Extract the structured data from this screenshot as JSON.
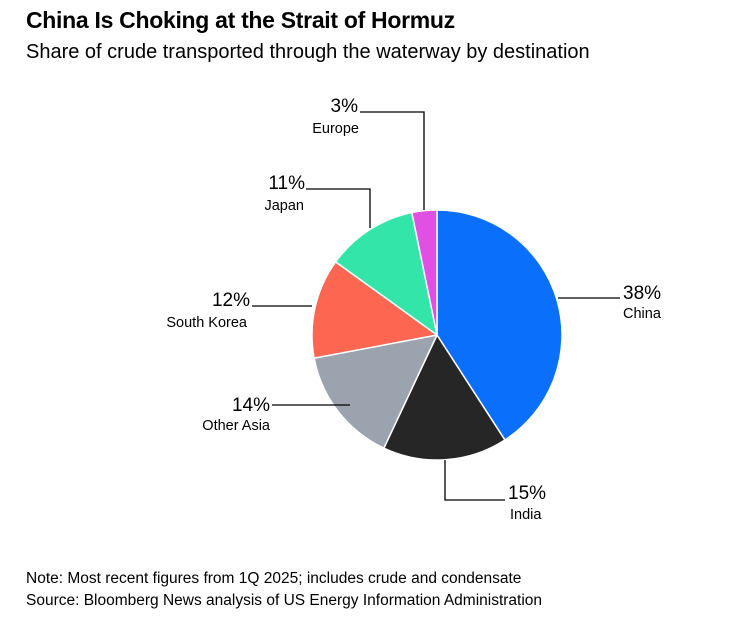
{
  "header": {
    "title": "China Is Choking at the Strait of Hormuz",
    "subtitle": "Share of crude transported through the waterway by destination"
  },
  "footer": {
    "note": "Note: Most recent figures from 1Q 2025; includes crude and condensate",
    "source": "Source: Bloomberg News analysis of US Energy Information Administration"
  },
  "chart_data": {
    "type": "pie",
    "title": "China Is Choking at the Strait of Hormuz",
    "subtitle": "Share of crude transported through the waterway by destination",
    "unit": "%",
    "slices": [
      {
        "label": "China",
        "value": 38,
        "value_label": "38%",
        "color": "#0a6ffb"
      },
      {
        "label": "India",
        "value": 15,
        "value_label": "15%",
        "color": "#262626"
      },
      {
        "label": "Other Asia",
        "value": 14,
        "value_label": "14%",
        "color": "#9aa3ae"
      },
      {
        "label": "South Korea",
        "value": 12,
        "value_label": "12%",
        "color": "#fd6651"
      },
      {
        "label": "Japan",
        "value": 11,
        "value_label": "11%",
        "color": "#33e5a9"
      },
      {
        "label": "Europe",
        "value": 3,
        "value_label": "3%",
        "color": "#e051e3"
      }
    ]
  }
}
